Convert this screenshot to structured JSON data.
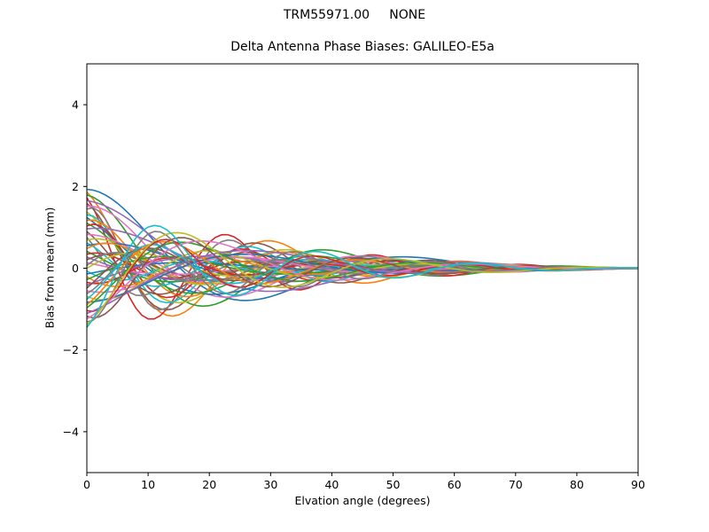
{
  "figure": {
    "suptitle": "TRM55971.00     NONE",
    "axes_title": "Delta Antenna Phase Biases: GALILEO-E5a",
    "xlabel": "Elvation angle (degrees)",
    "ylabel": "Bias from mean (mm)",
    "background_color": "#ffffff",
    "frame_color": "#000000",
    "text_color": "#000000"
  },
  "chart_data": {
    "type": "line",
    "title": "Delta Antenna Phase Biases: GALILEO-E5a",
    "suptitle": "TRM55971.00     NONE",
    "xlabel": "Elvation angle (degrees)",
    "ylabel": "Bias from mean (mm)",
    "xlim": [
      0,
      90
    ],
    "ylim": [
      -5,
      5
    ],
    "xticks": {
      "values": [
        0,
        10,
        20,
        30,
        40,
        50,
        60,
        70,
        80,
        90
      ],
      "labels": [
        "0",
        "10",
        "20",
        "30",
        "40",
        "50",
        "60",
        "70",
        "80",
        "90"
      ]
    },
    "yticks": {
      "values": [
        -4,
        -2,
        0,
        2,
        4
      ],
      "labels": [
        "−4",
        "−2",
        "0",
        "2",
        "4"
      ]
    },
    "grid": false,
    "legend": "none",
    "num_series": 50,
    "colors": [
      "#1f77b4",
      "#ff7f0e",
      "#2ca02c",
      "#d62728",
      "#9467bd",
      "#8c564b",
      "#e377c2",
      "#7f7f7f",
      "#bcbd22",
      "#17becf"
    ],
    "envelope": {
      "x": [
        0,
        10,
        20,
        30,
        40,
        50,
        60,
        70,
        80,
        90
      ],
      "upper": [
        1.93,
        1.45,
        1.0,
        0.72,
        0.5,
        0.33,
        0.2,
        0.1,
        0.04,
        0.01
      ],
      "lower": [
        -1.45,
        -1.3,
        -1.0,
        -0.72,
        -0.5,
        -0.33,
        -0.2,
        -0.1,
        -0.04,
        -0.01
      ]
    },
    "series_model": {
      "description": "Each of the 50 delta phase-bias curves starts at its initial bias value at 0 deg elevation, oscillates while crossing neighbouring curves below ~30 deg, and decays to 0 mm at 90 deg.",
      "converges_to": 0,
      "decay": {
        "tau_deg": 30,
        "taper_amount": 0.9,
        "taper_power": 3
      },
      "wiggle_freq_pattern": [
        0.12,
        0.2,
        0.16,
        0.26,
        0.1,
        0.22,
        0.14,
        0.28,
        0.18,
        0.24
      ],
      "wiggle_amp_pattern": [
        0.5,
        -0.35,
        0.2,
        -0.5,
        0.35,
        -0.2,
        0.45
      ],
      "initial_biases": [
        1.93,
        1.861,
        1.792,
        1.723,
        1.654,
        1.585,
        1.516,
        1.447,
        1.378,
        1.309,
        1.24,
        1.171,
        1.102,
        1.033,
        0.964,
        0.895,
        0.826,
        0.757,
        0.688,
        0.619,
        0.55,
        0.481,
        0.412,
        0.343,
        0.274,
        0.205,
        0.136,
        0.067,
        -0.002,
        -0.071,
        -0.14,
        -0.209,
        -0.278,
        -0.347,
        -0.416,
        -0.485,
        -0.554,
        -0.623,
        -0.692,
        -0.761,
        -0.83,
        -0.899,
        -0.968,
        -1.037,
        -1.106,
        -1.175,
        -1.244,
        -1.313,
        -1.382,
        -1.451
      ]
    }
  }
}
